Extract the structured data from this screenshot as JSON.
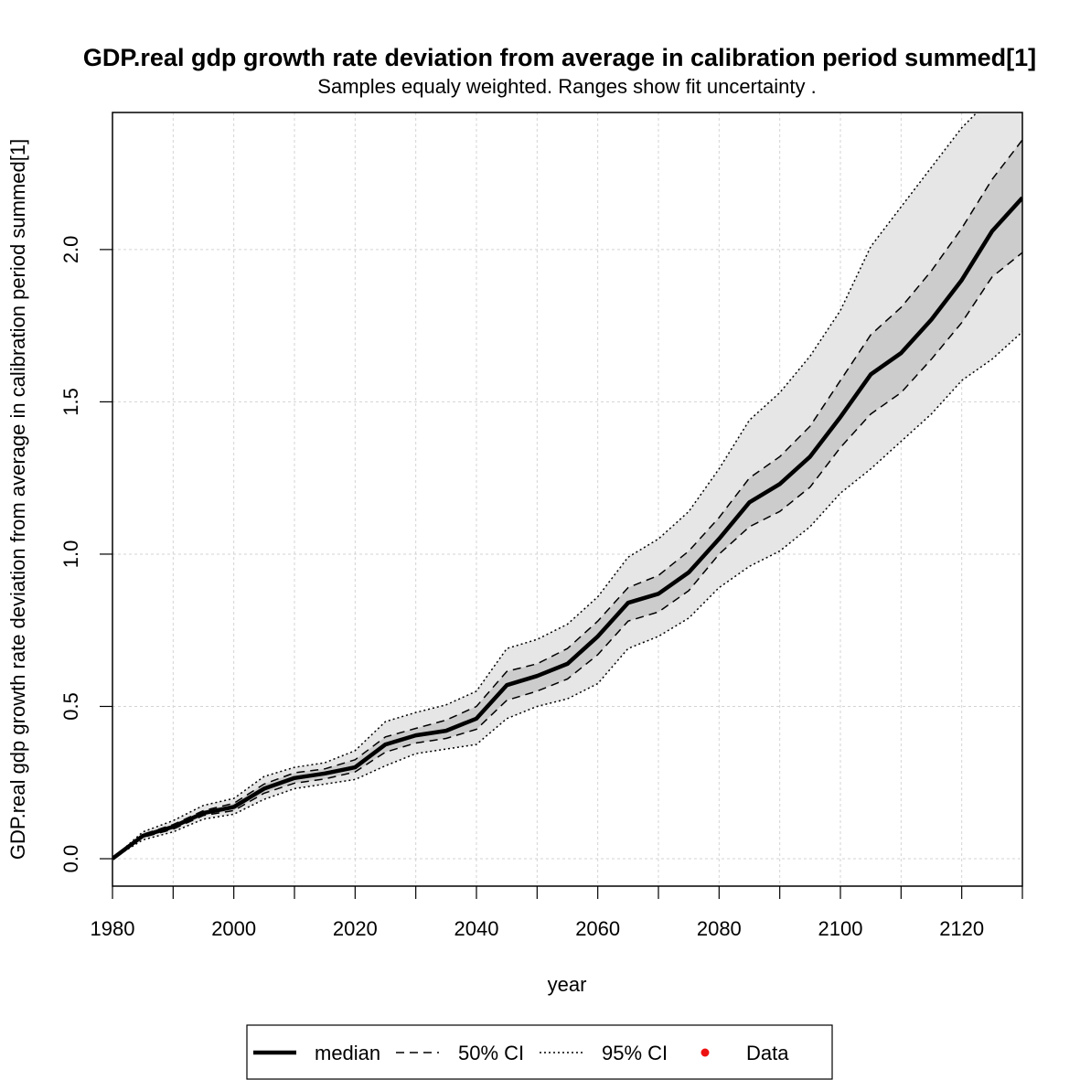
{
  "chart_data": {
    "type": "line",
    "title": "GDP.real gdp growth rate deviation from average in calibration period summed[1]",
    "subtitle": "Samples equaly weighted. Ranges show  fit uncertainty .",
    "xlabel": "year",
    "ylabel": "GDP.real gdp growth rate deviation from average in calibration period summed[1]",
    "xlim": [
      1980,
      2130
    ],
    "ylim": [
      -0.09,
      2.45
    ],
    "x_ticks": [
      1980,
      1990,
      2000,
      2010,
      2020,
      2030,
      2040,
      2050,
      2060,
      2070,
      2080,
      2090,
      2100,
      2110,
      2120,
      2130
    ],
    "x_tick_labels": [
      "1980",
      "2000",
      "2020",
      "2040",
      "2060",
      "2080",
      "2100",
      "2120"
    ],
    "x_tick_label_values": [
      1980,
      2000,
      2020,
      2040,
      2060,
      2080,
      2100,
      2120
    ],
    "y_ticks": [
      0.0,
      0.5,
      1.0,
      1.5,
      2.0
    ],
    "y_tick_labels": [
      "0.0",
      "0.5",
      "1.0",
      "1.5",
      "2.0"
    ],
    "grid": true,
    "legend_position": "bottom",
    "x": [
      1980,
      1985,
      1990,
      1995,
      2000,
      2005,
      2010,
      2015,
      2020,
      2025,
      2030,
      2035,
      2040,
      2045,
      2050,
      2055,
      2060,
      2065,
      2070,
      2075,
      2080,
      2085,
      2090,
      2095,
      2100,
      2105,
      2110,
      2115,
      2120,
      2125,
      2130
    ],
    "series": [
      {
        "name": "median",
        "style": "solid-thick",
        "values": [
          0.0,
          0.075,
          0.105,
          0.15,
          0.17,
          0.23,
          0.265,
          0.28,
          0.3,
          0.375,
          0.405,
          0.42,
          0.46,
          0.57,
          0.6,
          0.64,
          0.73,
          0.84,
          0.87,
          0.94,
          1.05,
          1.17,
          1.23,
          1.32,
          1.45,
          1.59,
          1.66,
          1.77,
          1.9,
          2.06,
          2.17
        ]
      },
      {
        "name": "50% CI upper",
        "style": "dashed",
        "values": [
          0.0,
          0.08,
          0.112,
          0.158,
          0.182,
          0.245,
          0.282,
          0.295,
          0.325,
          0.4,
          0.428,
          0.455,
          0.5,
          0.615,
          0.64,
          0.69,
          0.78,
          0.89,
          0.93,
          1.01,
          1.12,
          1.25,
          1.32,
          1.42,
          1.57,
          1.72,
          1.81,
          1.93,
          2.07,
          2.23,
          2.36
        ]
      },
      {
        "name": "50% CI lower",
        "style": "dashed",
        "values": [
          0.0,
          0.07,
          0.097,
          0.142,
          0.158,
          0.215,
          0.248,
          0.262,
          0.285,
          0.35,
          0.38,
          0.395,
          0.425,
          0.52,
          0.55,
          0.59,
          0.67,
          0.78,
          0.81,
          0.88,
          1.0,
          1.09,
          1.14,
          1.22,
          1.35,
          1.46,
          1.53,
          1.64,
          1.76,
          1.91,
          1.99
        ]
      },
      {
        "name": "95% CI upper",
        "style": "dotted",
        "values": [
          0.0,
          0.088,
          0.125,
          0.175,
          0.198,
          0.27,
          0.3,
          0.315,
          0.355,
          0.45,
          0.48,
          0.505,
          0.55,
          0.69,
          0.72,
          0.77,
          0.86,
          0.99,
          1.05,
          1.14,
          1.28,
          1.44,
          1.53,
          1.65,
          1.8,
          2.01,
          2.14,
          2.27,
          2.4,
          2.5,
          2.6
        ]
      },
      {
        "name": "95% CI lower",
        "style": "dotted",
        "values": [
          0.0,
          0.062,
          0.088,
          0.13,
          0.146,
          0.195,
          0.23,
          0.245,
          0.26,
          0.305,
          0.345,
          0.36,
          0.375,
          0.46,
          0.5,
          0.525,
          0.575,
          0.69,
          0.73,
          0.79,
          0.89,
          0.96,
          1.01,
          1.09,
          1.2,
          1.28,
          1.37,
          1.46,
          1.57,
          1.64,
          1.73
        ]
      }
    ],
    "bands": [
      {
        "name": "95% CI",
        "color": "#e6e6e6"
      },
      {
        "name": "50% CI",
        "color": "#cccccc"
      }
    ],
    "legend": {
      "items": [
        "median",
        "50% CI",
        "95% CI",
        "Data"
      ],
      "data_marker_color": "#ee1111"
    }
  }
}
